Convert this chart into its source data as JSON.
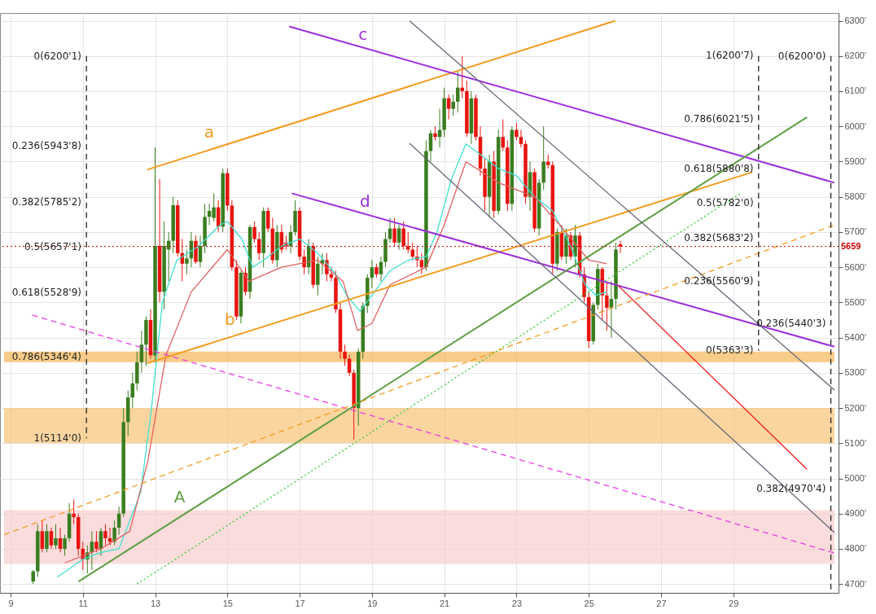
{
  "chart_data": {
    "type": "candlestick",
    "x": [
      9.625,
      9.75,
      9.875,
      10,
      10.125,
      10.25,
      10.375,
      10.5,
      10.625,
      10.75,
      10.875,
      11,
      11.125,
      11.25,
      11.375,
      11.5,
      11.625,
      11.75,
      11.875,
      12,
      12.125,
      12.25,
      12.375,
      12.5,
      12.625,
      12.75,
      12.875,
      13,
      13.125,
      13.25,
      13.375,
      13.5,
      13.625,
      13.75,
      13.875,
      14,
      14.125,
      14.25,
      14.375,
      14.5,
      14.625,
      14.75,
      14.875,
      15,
      15.125,
      15.25,
      15.375,
      15.5,
      15.625,
      15.75,
      15.875,
      16,
      16.125,
      16.25,
      16.375,
      16.5,
      16.625,
      16.75,
      16.875,
      17,
      17.125,
      17.25,
      17.375,
      17.5,
      17.625,
      17.75,
      17.875,
      18,
      18.125,
      18.25,
      18.375,
      18.5,
      18.625,
      18.75,
      18.875,
      19,
      19.125,
      19.25,
      19.375,
      19.5,
      19.625,
      19.75,
      19.875,
      20,
      20.125,
      20.25,
      20.375,
      20.5,
      20.625,
      20.75,
      20.875,
      21,
      21.125,
      21.25,
      21.375,
      21.5,
      21.625,
      21.75,
      21.875,
      22,
      22.125,
      22.25,
      22.375,
      22.5,
      22.625,
      22.75,
      22.875,
      23,
      23.125,
      23.25,
      23.375,
      23.5,
      23.625,
      23.75,
      23.875,
      24,
      24.125,
      24.25,
      24.375,
      24.5,
      24.625,
      24.75,
      24.875,
      25,
      25.125,
      25.25,
      25.375,
      25.5,
      25.625,
      25.75,
      25.875
    ],
    "ohlc": [
      [
        4707,
        4740,
        4700,
        4736
      ],
      [
        4736,
        4870,
        4720,
        4850
      ],
      [
        4850,
        4880,
        4790,
        4800
      ],
      [
        4800,
        4870,
        4790,
        4850
      ],
      [
        4850,
        4860,
        4800,
        4810
      ],
      [
        4810,
        4870,
        4800,
        4830
      ],
      [
        4830,
        4860,
        4790,
        4800
      ],
      [
        4800,
        4840,
        4780,
        4830
      ],
      [
        4830,
        4930,
        4820,
        4900
      ],
      [
        4900,
        4940,
        4870,
        4890
      ],
      [
        4890,
        4900,
        4780,
        4800
      ],
      [
        4800,
        4820,
        4740,
        4770
      ],
      [
        4770,
        4810,
        4730,
        4790
      ],
      [
        4790,
        4850,
        4740,
        4820
      ],
      [
        4820,
        4850,
        4790,
        4800
      ],
      [
        4800,
        4860,
        4780,
        4850
      ],
      [
        4850,
        4870,
        4810,
        4830
      ],
      [
        4830,
        4860,
        4810,
        4820
      ],
      [
        4820,
        4880,
        4810,
        4860
      ],
      [
        4860,
        4920,
        4840,
        4900
      ],
      [
        4900,
        5200,
        4890,
        5160
      ],
      [
        5160,
        5250,
        5120,
        5230
      ],
      [
        5230,
        5300,
        5200,
        5270
      ],
      [
        5270,
        5360,
        5250,
        5330
      ],
      [
        5330,
        5420,
        5300,
        5380
      ],
      [
        5380,
        5460,
        5320,
        5450
      ],
      [
        5450,
        5480,
        5340,
        5350
      ],
      [
        5350,
        5940,
        5330,
        5660
      ],
      [
        5660,
        5850,
        5500,
        5530
      ],
      [
        5530,
        5730,
        5480,
        5660
      ],
      [
        5650,
        5700,
        5560,
        5675
      ],
      [
        5675,
        5800,
        5640,
        5776
      ],
      [
        5776,
        5790,
        5630,
        5640
      ],
      [
        5640,
        5680,
        5560,
        5610
      ],
      [
        5610,
        5650,
        5580,
        5625
      ],
      [
        5625,
        5700,
        5600,
        5675
      ],
      [
        5675,
        5690,
        5610,
        5615
      ],
      [
        5615,
        5690,
        5600,
        5660
      ],
      [
        5660,
        5780,
        5640,
        5743
      ],
      [
        5743,
        5780,
        5720,
        5760
      ],
      [
        5740,
        5810,
        5730,
        5770
      ],
      [
        5770,
        5790,
        5700,
        5715
      ],
      [
        5715,
        5880,
        5700,
        5867
      ],
      [
        5867,
        5880,
        5760,
        5775
      ],
      [
        5775,
        5790,
        5590,
        5600
      ],
      [
        5600,
        5620,
        5450,
        5460
      ],
      [
        5460,
        5590,
        5440,
        5584
      ],
      [
        5584,
        5600,
        5520,
        5530
      ],
      [
        5530,
        5720,
        5510,
        5714
      ],
      [
        5714,
        5730,
        5670,
        5680
      ],
      [
        5680,
        5700,
        5620,
        5640
      ],
      [
        5640,
        5770,
        5600,
        5760
      ],
      [
        5760,
        5770,
        5700,
        5710
      ],
      [
        5710,
        5740,
        5610,
        5620
      ],
      [
        5620,
        5720,
        5600,
        5700
      ],
      [
        5700,
        5720,
        5640,
        5650
      ],
      [
        5670,
        5690,
        5650,
        5660
      ],
      [
        5660,
        5720,
        5640,
        5700
      ],
      [
        5700,
        5790,
        5690,
        5760
      ],
      [
        5760,
        5770,
        5620,
        5630
      ],
      [
        5630,
        5650,
        5580,
        5600
      ],
      [
        5600,
        5680,
        5580,
        5660
      ],
      [
        5660,
        5670,
        5540,
        5550
      ],
      [
        5550,
        5630,
        5520,
        5610
      ],
      [
        5610,
        5640,
        5580,
        5620
      ],
      [
        5620,
        5640,
        5560,
        5580
      ],
      [
        5580,
        5600,
        5560,
        5570
      ],
      [
        5570,
        5590,
        5470,
        5480
      ],
      [
        5480,
        5500,
        5340,
        5360
      ],
      [
        5360,
        5380,
        5320,
        5340
      ],
      [
        5340,
        5350,
        5290,
        5300
      ],
      [
        5300,
        5310,
        5110,
        5200
      ],
      [
        5200,
        5370,
        5150,
        5360
      ],
      [
        5360,
        5500,
        5340,
        5490
      ],
      [
        5490,
        5580,
        5470,
        5570
      ],
      [
        5570,
        5620,
        5540,
        5600
      ],
      [
        5600,
        5610,
        5570,
        5580
      ],
      [
        5580,
        5630,
        5560,
        5615
      ],
      [
        5615,
        5700,
        5600,
        5680
      ],
      [
        5680,
        5740,
        5670,
        5710
      ],
      [
        5710,
        5740,
        5660,
        5670
      ],
      [
        5670,
        5720,
        5650,
        5710
      ],
      [
        5710,
        5730,
        5650,
        5660
      ],
      [
        5660,
        5700,
        5640,
        5650
      ],
      [
        5650,
        5670,
        5620,
        5630
      ],
      [
        5630,
        5660,
        5600,
        5620
      ],
      [
        5620,
        5640,
        5580,
        5600
      ],
      [
        5600,
        5960,
        5590,
        5930
      ],
      [
        5930,
        5990,
        5900,
        5980
      ],
      [
        5980,
        6000,
        5960,
        5970
      ],
      [
        5970,
        6050,
        5940,
        5990
      ],
      [
        5990,
        6110,
        5970,
        6080
      ],
      [
        6080,
        6090,
        6020,
        6050
      ],
      [
        6050,
        6090,
        6030,
        6070
      ],
      [
        6070,
        6160,
        6040,
        6110
      ],
      [
        6110,
        6200,
        6080,
        6100
      ],
      [
        6100,
        6130,
        5970,
        5980
      ],
      [
        5980,
        6100,
        5950,
        6080
      ],
      [
        6080,
        6090,
        5960,
        5970
      ],
      [
        5970,
        6000,
        5860,
        5880
      ],
      [
        5880,
        5910,
        5760,
        5800
      ],
      [
        5800,
        5920,
        5740,
        5900
      ],
      [
        5900,
        5930,
        5740,
        5760
      ],
      [
        5760,
        5990,
        5750,
        5970
      ],
      [
        5970,
        6020,
        5930,
        5940
      ],
      [
        5940,
        5960,
        5760,
        5780
      ],
      [
        5780,
        6000,
        5760,
        5990
      ],
      [
        5990,
        6010,
        5960,
        5970
      ],
      [
        5970,
        5990,
        5940,
        5950
      ],
      [
        5950,
        5960,
        5780,
        5800
      ],
      [
        5800,
        5900,
        5760,
        5870
      ],
      [
        5870,
        5880,
        5700,
        5710
      ],
      [
        5710,
        5850,
        5690,
        5840
      ],
      [
        5840,
        6000,
        5820,
        5900
      ],
      [
        5900,
        5920,
        5880,
        5890
      ],
      [
        5890,
        5900,
        5580,
        5610
      ],
      [
        5610,
        5710,
        5590,
        5700
      ],
      [
        5700,
        5720,
        5620,
        5630
      ],
      [
        5630,
        5710,
        5610,
        5690
      ],
      [
        5690,
        5700,
        5620,
        5630
      ],
      [
        5630,
        5720,
        5600,
        5690
      ],
      [
        5690,
        5700,
        5570,
        5580
      ],
      [
        5580,
        5600,
        5500,
        5515
      ],
      [
        5515,
        5530,
        5370,
        5390
      ],
      [
        5390,
        5500,
        5380,
        5493
      ],
      [
        5493,
        5610,
        5480,
        5595
      ],
      [
        5595,
        5600,
        5450,
        5520
      ],
      [
        5520,
        5560,
        5420,
        5485
      ],
      [
        5485,
        5560,
        5400,
        5510
      ],
      [
        5510,
        5670,
        5480,
        5650
      ],
      [
        5665,
        5675,
        5640,
        5659
      ]
    ],
    "colors": [
      "#3a7d1f",
      "#3a7d1f",
      "#e8140f",
      "#3a7d1f",
      "#e8140f",
      "#3a7d1f",
      "#e8140f",
      "#3a7d1f",
      "#3a7d1f",
      "#e8140f",
      "#e8140f",
      "#e8140f",
      "#3a7d1f",
      "#3a7d1f",
      "#e8140f",
      "#3a7d1f",
      "#e8140f",
      "#e8140f",
      "#3a7d1f",
      "#3a7d1f",
      "#3a7d1f",
      "#3a7d1f",
      "#3a7d1f",
      "#3a7d1f",
      "#3a7d1f",
      "#3a7d1f",
      "#e8140f",
      "#3a7d1f",
      "#e8140f",
      "#3a7d1f",
      "#3a7d1f",
      "#3a7d1f",
      "#e8140f",
      "#e8140f",
      "#3a7d1f",
      "#3a7d1f",
      "#e8140f",
      "#3a7d1f",
      "#3a7d1f",
      "#3a7d1f",
      "#3a7d1f",
      "#e8140f",
      "#3a7d1f",
      "#e8140f",
      "#e8140f",
      "#e8140f",
      "#3a7d1f",
      "#e8140f",
      "#3a7d1f",
      "#e8140f",
      "#e8140f",
      "#3a7d1f",
      "#e8140f",
      "#e8140f",
      "#3a7d1f",
      "#e8140f",
      "#e8140f",
      "#3a7d1f",
      "#3a7d1f",
      "#e8140f",
      "#e8140f",
      "#3a7d1f",
      "#e8140f",
      "#3a7d1f",
      "#3a7d1f",
      "#e8140f",
      "#e8140f",
      "#e8140f",
      "#e8140f",
      "#e8140f",
      "#e8140f",
      "#e8140f",
      "#3a7d1f",
      "#3a7d1f",
      "#3a7d1f",
      "#3a7d1f",
      "#e8140f",
      "#3a7d1f",
      "#3a7d1f",
      "#3a7d1f",
      "#e8140f",
      "#3a7d1f",
      "#e8140f",
      "#e8140f",
      "#e8140f",
      "#e8140f",
      "#e8140f",
      "#3a7d1f",
      "#3a7d1f",
      "#e8140f",
      "#3a7d1f",
      "#3a7d1f",
      "#e8140f",
      "#3a7d1f",
      "#3a7d1f",
      "#e8140f",
      "#e8140f",
      "#3a7d1f",
      "#e8140f",
      "#e8140f",
      "#e8140f",
      "#3a7d1f",
      "#e8140f",
      "#3a7d1f",
      "#e8140f",
      "#e8140f",
      "#3a7d1f",
      "#e8140f",
      "#e8140f",
      "#e8140f",
      "#3a7d1f",
      "#e8140f",
      "#3a7d1f",
      "#3a7d1f",
      "#e8140f",
      "#e8140f",
      "#3a7d1f",
      "#e8140f",
      "#3a7d1f",
      "#e8140f",
      "#3a7d1f",
      "#e8140f",
      "#e8140f",
      "#e8140f",
      "#3a7d1f",
      "#3a7d1f",
      "#e8140f",
      "#e8140f",
      "#3a7d1f",
      "#3a7d1f",
      "#e8140f"
    ],
    "series": [
      {
        "type": "line",
        "color": "#40e0d0",
        "line_style": "solid",
        "x": [
          10.3,
          11,
          11.5,
          12,
          12.6,
          12.9,
          13.2,
          13.6,
          14.2,
          14.8,
          15,
          15.4,
          15.7,
          16,
          16.5,
          17,
          17.5,
          18,
          18.3,
          18.67,
          19,
          19.5,
          20,
          20.5,
          20.8,
          21.2,
          21.6,
          22,
          22.5,
          23,
          23.5,
          24,
          24.5,
          24.9,
          25.2,
          25.5
        ],
        "values": [
          4720,
          4770,
          4790,
          4800,
          4960,
          5200,
          5500,
          5620,
          5660,
          5720,
          5730,
          5680,
          5600,
          5620,
          5660,
          5680,
          5640,
          5580,
          5520,
          5475,
          5520,
          5590,
          5620,
          5630,
          5700,
          5850,
          5950,
          5920,
          5880,
          5860,
          5800,
          5760,
          5660,
          5550,
          5520,
          5530
        ]
      },
      {
        "type": "line",
        "color": "#e06060",
        "line_style": "solid",
        "x": [
          10.5,
          11.5,
          12.3,
          12.8,
          13.3,
          14,
          15,
          15.6,
          16.5,
          17.5,
          18.2,
          18.6,
          19,
          19.5,
          20.5,
          21,
          21.6,
          22.5,
          23.5,
          24.2,
          25,
          25.5
        ],
        "values": [
          4760,
          4800,
          4850,
          5050,
          5350,
          5530,
          5650,
          5560,
          5600,
          5620,
          5560,
          5420,
          5440,
          5550,
          5600,
          5720,
          5900,
          5840,
          5800,
          5720,
          5620,
          5610
        ]
      },
      {
        "type": "line",
        "name": "a",
        "color": "#f39c1f",
        "line_style": "solid",
        "x": [
          12.78,
          25.73
        ],
        "values": [
          5877,
          6300
        ]
      },
      {
        "type": "line",
        "name": "b",
        "color": "#f39c1f",
        "line_style": "solid",
        "x": [
          12.78,
          29.53
        ],
        "values": [
          5327,
          5870
        ]
      },
      {
        "type": "line",
        "name": "c",
        "color": "#9b30d9",
        "line_style": "solid",
        "x": [
          16.71,
          31.8
        ],
        "values": [
          6284,
          5840
        ]
      },
      {
        "type": "line",
        "name": "d",
        "color": "#9b30d9",
        "line_style": "solid",
        "x": [
          16.78,
          31.8
        ],
        "values": [
          5810,
          5374
        ]
      },
      {
        "type": "line",
        "name": "A",
        "color": "#5f9e44",
        "line_style": "solid",
        "x": [
          10.88,
          31.04
        ],
        "values": [
          4707,
          6026
        ]
      },
      {
        "type": "line",
        "color": "#33cc33",
        "line_style": "dotted",
        "x": [
          12.5,
          29.2
        ],
        "values": [
          4700,
          5810
        ]
      },
      {
        "type": "line",
        "color": "#e83ee8",
        "line_style": "dashed",
        "x": [
          9.6,
          31.8
        ],
        "values": [
          5464,
          4788
        ]
      },
      {
        "type": "line",
        "color": "#f39c1f",
        "line_style": "dashed",
        "x": [
          8.82,
          31.8
        ],
        "values": [
          4840,
          5720
        ]
      },
      {
        "type": "line",
        "color": "#666677",
        "line_style": "solid",
        "x": [
          20.04,
          31.8
        ],
        "values": [
          6300,
          5251
        ]
      },
      {
        "type": "line",
        "color": "#666677",
        "line_style": "solid",
        "x": [
          20.04,
          31.8
        ],
        "values": [
          5952,
          4846
        ]
      },
      {
        "type": "line",
        "color": "#ee1c1c",
        "line_style": "solid",
        "x": [
          25.82,
          31.04
        ],
        "values": [
          5547,
          5026
        ]
      },
      {
        "type": "line",
        "color": "#222222",
        "line_style": "dashed",
        "x": [
          11.1,
          11.1
        ],
        "values": [
          6200,
          5114
        ]
      },
      {
        "type": "line",
        "color": "#222222",
        "line_style": "dashed",
        "x": [
          29.7,
          29.7
        ],
        "values": [
          6200,
          5363
        ]
      },
      {
        "type": "line",
        "color": "#222222",
        "line_style": "dashed",
        "x": [
          31.7,
          31.7
        ],
        "values": [
          6200,
          4675
        ]
      }
    ],
    "bands": [
      {
        "axis": "y",
        "from": 5330,
        "to": 5360,
        "color": "#f5b04a"
      },
      {
        "axis": "y",
        "from": 5100,
        "to": 5200,
        "color": "#f9bf6b"
      },
      {
        "axis": "y",
        "from": 4757,
        "to": 4910,
        "color": "#f8caca"
      }
    ],
    "ref_lines": [
      {
        "axis": "y",
        "value": 5659,
        "label": "5659",
        "color": "#cc0000",
        "line_style": "dotted"
      }
    ],
    "annotations": [
      {
        "text": "0(6200'1)",
        "x": 11.05,
        "y": 6200.1
      },
      {
        "text": "0.236(5943'8)",
        "x": 11.05,
        "y": 5943.8
      },
      {
        "text": "0.382(5785'2)",
        "x": 11.05,
        "y": 5785.2
      },
      {
        "text": "0.5(5657'1)",
        "x": 11.05,
        "y": 5657.1
      },
      {
        "text": "0.618(5528'9)",
        "x": 11.05,
        "y": 5528.9
      },
      {
        "text": "0.786(5346'4)",
        "x": 11.05,
        "y": 5346.4
      },
      {
        "text": "1(5114'0)",
        "x": 11.05,
        "y": 5114
      },
      {
        "text": "1(6200'7)",
        "x": 29.65,
        "y": 6200.7
      },
      {
        "text": "0.786(6021'5)",
        "x": 29.65,
        "y": 6021.5
      },
      {
        "text": "0.618(5880'8)",
        "x": 29.65,
        "y": 5880.8
      },
      {
        "text": "0.5(5782'0)",
        "x": 29.65,
        "y": 5782
      },
      {
        "text": "0.382(5683'2)",
        "x": 29.65,
        "y": 5683.2
      },
      {
        "text": "0.236(5560'9)",
        "x": 29.65,
        "y": 5560.9
      },
      {
        "text": "0(5363'3)",
        "x": 29.65,
        "y": 5363.3
      },
      {
        "text": "0(6200'0)",
        "x": 31.65,
        "y": 6200
      },
      {
        "text": "0.236(5440'3)",
        "x": 31.65,
        "y": 5440.3
      },
      {
        "text": "0.382(4970'4)",
        "x": 31.65,
        "y": 4970.4
      }
    ],
    "xlim": [
      8.82,
      31.8
    ],
    "ylim": [
      4675,
      6322
    ],
    "xticks": [
      9,
      11,
      13,
      15,
      17,
      19,
      21,
      23,
      25,
      27,
      29
    ],
    "yticks": [
      {
        "value": 4700,
        "label": "4700'"
      },
      {
        "value": 4800,
        "label": "4800'"
      },
      {
        "value": 4900,
        "label": "4900'"
      },
      {
        "value": 5000,
        "label": "5000'"
      },
      {
        "value": 5100,
        "label": "5100'"
      },
      {
        "value": 5200,
        "label": "5200'"
      },
      {
        "value": 5300,
        "label": "5300'"
      },
      {
        "value": 5400,
        "label": "5400'"
      },
      {
        "value": 5500,
        "label": "5500'"
      },
      {
        "value": 5600,
        "label": "5600'"
      },
      {
        "value": 5700,
        "label": "5700'"
      },
      {
        "value": 5800,
        "label": "5800'"
      },
      {
        "value": 5900,
        "label": "5900'"
      },
      {
        "value": 6000,
        "label": "6000'"
      },
      {
        "value": 6100,
        "label": "6100'"
      },
      {
        "value": 6200,
        "label": "6200'"
      },
      {
        "value": 6300,
        "label": "6300'"
      }
    ],
    "grid": true
  }
}
